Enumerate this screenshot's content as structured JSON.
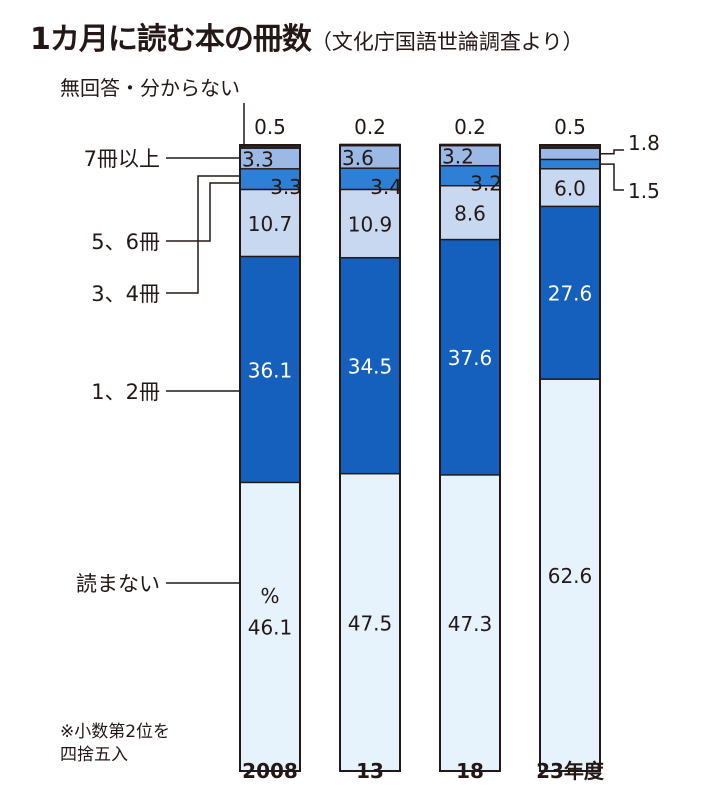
{
  "title": "1カ月に読む本の冊数",
  "source": "（文化庁国語世論調査より）",
  "note": [
    "※小数第2位を",
    "四捨五入"
  ],
  "unit": "%",
  "chart_data": {
    "type": "bar",
    "stacked": true,
    "categories": [
      "2008",
      "13",
      "18",
      "23年度"
    ],
    "series": [
      {
        "name": "読まない",
        "values": [
          46.1,
          47.5,
          47.3,
          62.6
        ],
        "color": "#e6f2fc"
      },
      {
        "name": "1、2冊",
        "values": [
          36.1,
          34.5,
          37.6,
          27.6
        ],
        "color": "#1560bd"
      },
      {
        "name": "3、4冊",
        "values": [
          10.7,
          10.9,
          8.6,
          6.0
        ],
        "color": "#c7d8f0"
      },
      {
        "name": "5、6冊",
        "values": [
          3.3,
          3.4,
          3.2,
          1.5
        ],
        "color": "#2e7fd6"
      },
      {
        "name": "7冊以上",
        "values": [
          3.3,
          3.6,
          3.2,
          1.8
        ],
        "color": "#9cb9e6"
      },
      {
        "name": "無回答・分からない",
        "values": [
          0.5,
          0.2,
          0.2,
          0.5
        ],
        "color": "#2a2a2a"
      }
    ],
    "data_labels": {
      "読まない": [
        "46.1",
        "47.5",
        "47.3",
        "62.6"
      ],
      "1、2冊": [
        "36.1",
        "34.5",
        "37.6",
        "27.6"
      ],
      "3、4冊": [
        "10.7",
        "10.9",
        "8.6",
        "6.0"
      ],
      "5、6冊": [
        "3.3",
        "3.4",
        "3.2",
        "1.5"
      ],
      "7冊以上": [
        "3.3",
        "3.6",
        "3.2",
        "1.8"
      ],
      "無回答・分からない": [
        "0.5",
        "0.2",
        "0.2",
        "0.5"
      ]
    },
    "ylim": [
      0,
      100
    ],
    "legend": "left"
  }
}
